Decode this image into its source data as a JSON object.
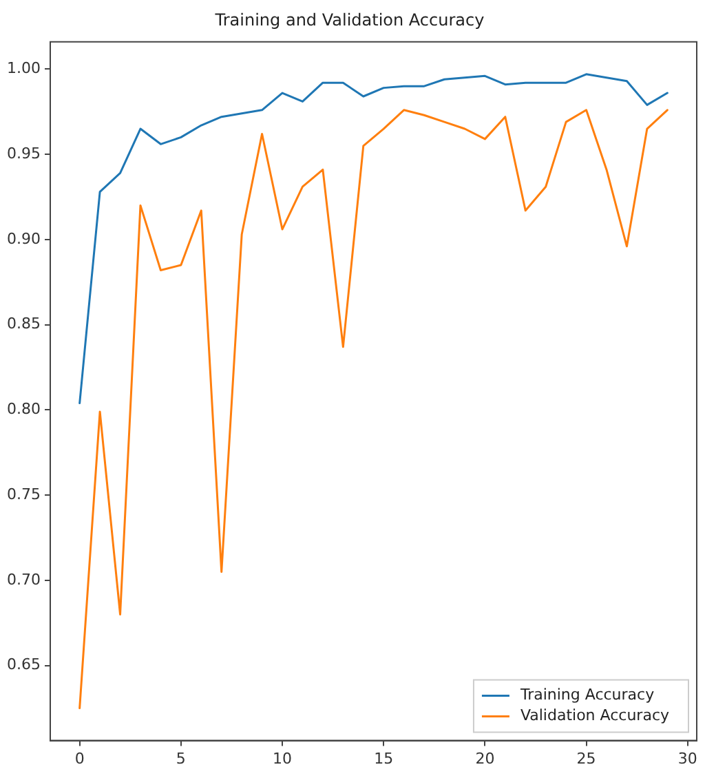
{
  "chart_data": {
    "type": "line",
    "title": "Training and Validation Accuracy",
    "x": [
      0,
      1,
      2,
      3,
      4,
      5,
      6,
      7,
      8,
      9,
      10,
      11,
      12,
      13,
      14,
      15,
      16,
      17,
      18,
      19,
      20,
      21,
      22,
      23,
      24,
      25,
      26,
      27,
      28,
      29
    ],
    "series": [
      {
        "name": "Training Accuracy",
        "color": "#1f77b4",
        "values": [
          0.804,
          0.928,
          0.939,
          0.965,
          0.956,
          0.96,
          0.967,
          0.972,
          0.974,
          0.976,
          0.986,
          0.981,
          0.992,
          0.992,
          0.984,
          0.989,
          0.99,
          0.99,
          0.994,
          0.995,
          0.996,
          0.991,
          0.992,
          0.992,
          0.992,
          0.997,
          0.995,
          0.993,
          0.979,
          0.986
        ]
      },
      {
        "name": "Validation Accuracy",
        "color": "#ff7f0e",
        "values": [
          0.625,
          0.799,
          0.68,
          0.92,
          0.882,
          0.885,
          0.917,
          0.705,
          0.903,
          0.962,
          0.906,
          0.931,
          0.941,
          0.837,
          0.955,
          0.965,
          0.976,
          0.973,
          0.969,
          0.965,
          0.959,
          0.972,
          0.917,
          0.931,
          0.969,
          0.976,
          0.941,
          0.896,
          0.965,
          0.976
        ]
      }
    ],
    "xlim": [
      -1.45,
      30.45
    ],
    "xticks": [
      0,
      5,
      10,
      15,
      20,
      25,
      30
    ],
    "ylim": [
      0.606,
      1.016
    ],
    "yticks": [
      {
        "value": 0.65,
        "label": "0.65"
      },
      {
        "value": 0.7,
        "label": "0.70"
      },
      {
        "value": 0.75,
        "label": "0.75"
      },
      {
        "value": 0.8,
        "label": "0.80"
      },
      {
        "value": 0.85,
        "label": "0.85"
      },
      {
        "value": 0.9,
        "label": "0.90"
      },
      {
        "value": 0.95,
        "label": "0.95"
      },
      {
        "value": 1.0,
        "label": "1.00"
      }
    ],
    "grid": false,
    "legend": "bottom right",
    "marker": "none",
    "line_style": "solid"
  }
}
